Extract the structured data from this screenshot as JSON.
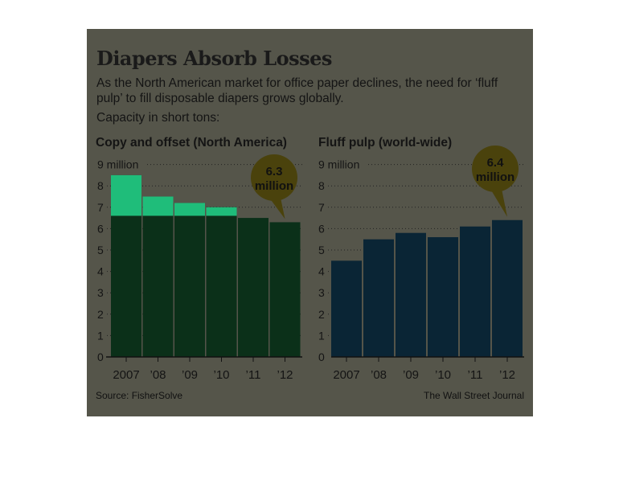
{
  "header": {
    "title": "Diapers Absorb Losses",
    "subtitle": "As the North American market for office paper declines, the need for ‘fluff pulp’ to fill disposable diapers grows globally.",
    "capacity_note": "Capacity in short tons:"
  },
  "footer": {
    "source": "Source: FisherSolve",
    "credit": "The Wall Street Journal"
  },
  "colors": {
    "panel": "#55554a",
    "left_bar": "#0b3019",
    "left_bar_top": "#1fbd7a",
    "right_bar": "#0a2535",
    "callout": "#4a420c"
  },
  "chart_data": [
    {
      "type": "bar",
      "title": "Copy and offset (North America)",
      "categories": [
        "2007",
        "’08",
        "’09",
        "’10",
        "’11",
        "’12"
      ],
      "values": [
        8.5,
        7.5,
        7.2,
        7.0,
        6.5,
        6.3
      ],
      "ylim": [
        0,
        9
      ],
      "yticks": [
        0,
        1,
        2,
        3,
        4,
        5,
        6,
        7,
        8,
        9
      ],
      "ytick_labels": [
        "0",
        "1",
        "2",
        "3",
        "4",
        "5",
        "6",
        "7",
        "8",
        "9 million"
      ],
      "grid": true,
      "annotation": {
        "category": "’12",
        "value_label": "6.3",
        "unit_label": "million"
      }
    },
    {
      "type": "bar",
      "title": "Fluff pulp (world-wide)",
      "categories": [
        "2007",
        "’08",
        "’09",
        "’10",
        "’11",
        "’12"
      ],
      "values": [
        4.5,
        5.5,
        5.8,
        5.6,
        6.1,
        6.4
      ],
      "ylim": [
        0,
        9
      ],
      "yticks": [
        0,
        1,
        2,
        3,
        4,
        5,
        6,
        7,
        8,
        9
      ],
      "ytick_labels": [
        "0",
        "1",
        "2",
        "3",
        "4",
        "5",
        "6",
        "7",
        "8",
        "9 million"
      ],
      "grid": true,
      "annotation": {
        "category": "’12",
        "value_label": "6.4",
        "unit_label": "million"
      }
    }
  ]
}
